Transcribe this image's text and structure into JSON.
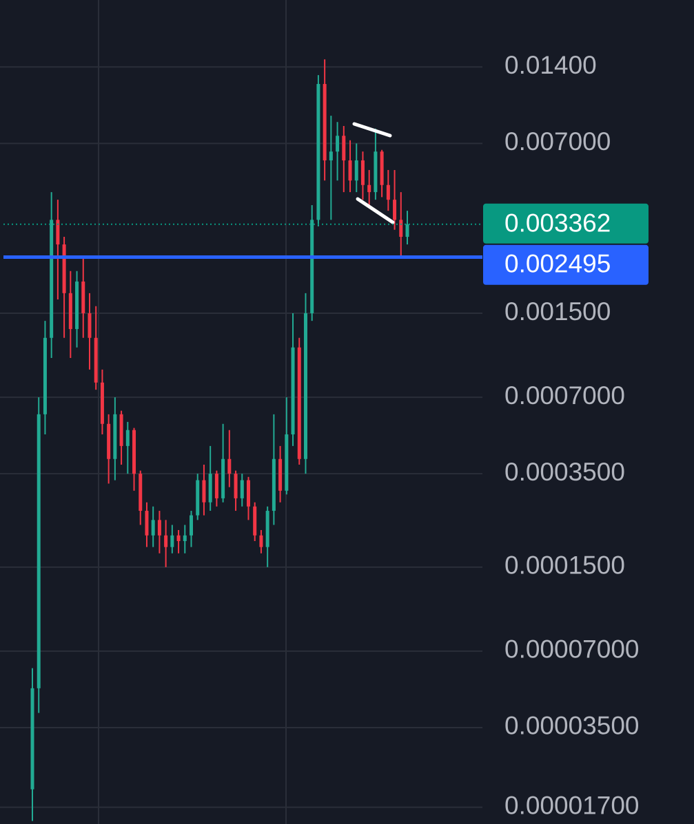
{
  "chart_data": {
    "type": "candlestick",
    "log_scale": true,
    "grid": true,
    "ylim": [
      1.46e-05,
      0.0257
    ],
    "yticks": [
      {
        "value": 0.014,
        "label": "0.01400"
      },
      {
        "value": 0.007,
        "label": "0.007000"
      },
      {
        "value": 0.0015,
        "label": "0.001500"
      },
      {
        "value": 0.0007,
        "label": "0.0007000"
      },
      {
        "value": 0.00035,
        "label": "0.0003500"
      },
      {
        "value": 0.00015,
        "label": "0.0001500"
      },
      {
        "value": 7e-05,
        "label": "0.00007000"
      },
      {
        "value": 3.5e-05,
        "label": "0.00003500"
      },
      {
        "value": 1.7e-05,
        "label": "0.00001700"
      }
    ],
    "up_color": "#22ab94",
    "down_color": "#f23645",
    "open": [
      2e-05,
      5e-05,
      0.0006,
      0.0012,
      0.0035,
      0.0028,
      0.0018,
      0.0013,
      0.002,
      0.0015,
      0.0012,
      0.0008,
      0.00055,
      0.0004,
      0.0006,
      0.00045,
      0.00052,
      0.00035,
      0.00025,
      0.0002,
      0.00023,
      0.0002,
      0.00018,
      0.0002,
      0.00019,
      0.0002,
      0.00024,
      0.00033,
      0.00027,
      0.00035,
      0.00028,
      0.0004,
      0.00035,
      0.00028,
      0.00033,
      0.00026,
      0.0002,
      0.00018,
      0.00025,
      0.0004,
      0.0003,
      0.0005,
      0.0011,
      0.0004,
      0.0015,
      0.0035,
      0.012,
      0.006,
      0.0065,
      0.0075,
      0.006,
      0.005,
      0.006,
      0.0048,
      0.0045,
      0.0065,
      0.0048,
      0.0042,
      0.0035,
      0.003
    ],
    "high": [
      6e-05,
      0.0007,
      0.0014,
      0.0045,
      0.0042,
      0.003,
      0.0022,
      0.0022,
      0.0025,
      0.0018,
      0.0016,
      0.0009,
      0.0006,
      0.0007,
      0.00062,
      0.00056,
      0.00053,
      0.00036,
      0.00027,
      0.00026,
      0.00025,
      0.00023,
      0.00022,
      0.00021,
      0.00022,
      0.00025,
      0.00035,
      0.00038,
      0.00045,
      0.00036,
      0.00055,
      0.00052,
      0.00036,
      0.00035,
      0.00034,
      0.00027,
      0.00021,
      0.00026,
      0.0006,
      0.00045,
      0.0007,
      0.0015,
      0.0012,
      0.0018,
      0.004,
      0.013,
      0.015,
      0.009,
      0.0085,
      0.0082,
      0.0072,
      0.007,
      0.0065,
      0.0055,
      0.008,
      0.0066,
      0.0055,
      0.0055,
      0.0045,
      0.0038
    ],
    "low": [
      1.5e-05,
      4e-05,
      0.0005,
      0.001,
      0.0017,
      0.0012,
      0.001,
      0.0011,
      0.0012,
      0.0009,
      0.00075,
      0.0005,
      0.00032,
      0.00033,
      0.00038,
      0.00035,
      0.0003,
      0.00022,
      0.00018,
      0.00018,
      0.00017,
      0.00015,
      0.00017,
      0.00017,
      0.00017,
      0.00018,
      0.00023,
      0.00024,
      0.00025,
      0.00026,
      0.00027,
      0.00031,
      0.00025,
      0.00026,
      0.00023,
      0.00019,
      0.00017,
      0.00015,
      0.00022,
      0.00027,
      0.00029,
      0.00045,
      0.00038,
      0.00035,
      0.0014,
      0.0033,
      0.005,
      0.0035,
      0.005,
      0.0045,
      0.0045,
      0.0045,
      0.0042,
      0.004,
      0.0042,
      0.0043,
      0.0038,
      0.0032,
      0.0025,
      0.0028
    ],
    "close": [
      5e-05,
      0.0006,
      0.0012,
      0.0035,
      0.0028,
      0.0018,
      0.0013,
      0.002,
      0.0015,
      0.0012,
      0.0008,
      0.00055,
      0.0004,
      0.0006,
      0.00045,
      0.00052,
      0.00035,
      0.00025,
      0.0002,
      0.00023,
      0.0002,
      0.00018,
      0.0002,
      0.00019,
      0.0002,
      0.00024,
      0.00033,
      0.00027,
      0.00035,
      0.00028,
      0.0004,
      0.00035,
      0.00028,
      0.00033,
      0.00026,
      0.0002,
      0.00018,
      0.00025,
      0.0004,
      0.0003,
      0.0005,
      0.0011,
      0.0004,
      0.0015,
      0.0035,
      0.012,
      0.006,
      0.0065,
      0.0075,
      0.006,
      0.005,
      0.006,
      0.0048,
      0.0045,
      0.0065,
      0.0048,
      0.0042,
      0.0035,
      0.003,
      0.003362
    ],
    "last_price": 0.003362,
    "last_price_color": "#089981",
    "horizontal_line": 0.002495,
    "horizontal_line_color": "#2962ff"
  }
}
